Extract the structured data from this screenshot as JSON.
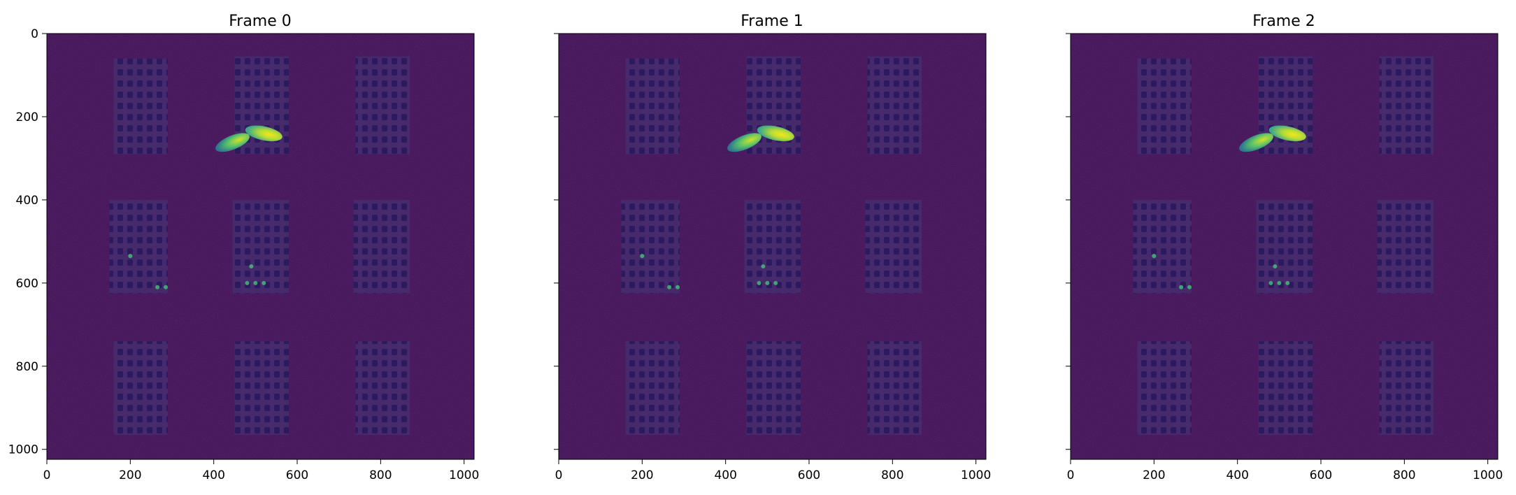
{
  "figure": {
    "panels": [
      {
        "title": "Frame 0"
      },
      {
        "title": "Frame 1"
      },
      {
        "title": "Frame 2"
      }
    ],
    "x_ticks": [
      "0",
      "200",
      "400",
      "600",
      "800",
      "1000"
    ],
    "y_ticks": [
      "0",
      "200",
      "400",
      "600",
      "800",
      "1000"
    ],
    "x_tick_values": [
      0,
      200,
      400,
      600,
      800,
      1000
    ],
    "y_tick_values": [
      0,
      200,
      400,
      600,
      800,
      1000
    ],
    "image_extent": [
      1024,
      1024
    ],
    "colormap": "viridis",
    "background_color": "#440d55",
    "highlight_color": "#d7e21f",
    "shared_y_axis": true
  }
}
